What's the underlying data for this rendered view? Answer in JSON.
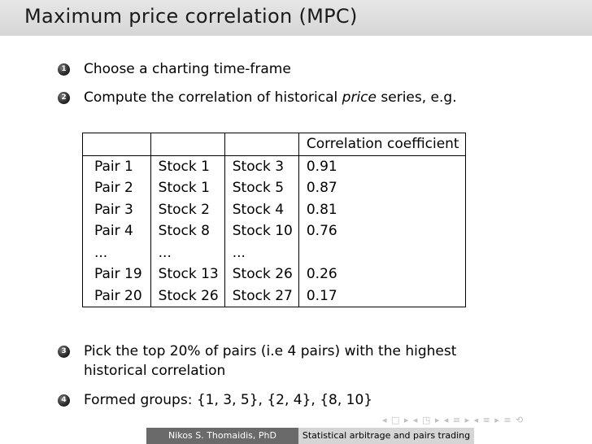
{
  "title": "Maximum price correlation (MPC)",
  "list": [
    {
      "num": "1",
      "text": "Choose a charting time-frame"
    },
    {
      "num": "2",
      "pre": "Compute the correlation of historical ",
      "em": "price",
      "post": " series, e.g."
    },
    {
      "num": "3",
      "line1": "Pick the top 20% of pairs (i.e 4 pairs) with the highest",
      "line2": "historical correlation"
    },
    {
      "num": "4",
      "text": "Formed groups: {1, 3, 5}, {2, 4}, {8, 10}"
    }
  ],
  "table": {
    "headers": [
      "",
      "",
      "",
      "Correlation coefficient"
    ],
    "rows": [
      [
        "Pair 1",
        "Stock 1",
        "Stock 3",
        "0.91"
      ],
      [
        "Pair 2",
        "Stock 1",
        "Stock 5",
        "0.87"
      ],
      [
        "Pair 3",
        "Stock 2",
        "Stock 4",
        "0.81"
      ],
      [
        "Pair 4",
        "Stock 8",
        "Stock 10",
        "0.76"
      ],
      [
        "...",
        "...",
        "...",
        ""
      ],
      [
        "Pair 19",
        "Stock 13",
        "Stock 26",
        "0.26"
      ],
      [
        "Pair 20",
        "Stock 26",
        "Stock 27",
        "0.17"
      ]
    ]
  },
  "nav": "◂ □ ▸ ◂ ◳ ▸ ◂ ≡ ▸ ◂ ≡ ▸ ≡ ⟲",
  "footer": {
    "author": "Nikos S. Thomaidis, PhD",
    "talk": "Statistical arbitrage and pairs trading"
  },
  "colors": {
    "title_bar": "#d6d6d6",
    "footer_author_bg": "#6a6a6a",
    "footer_talk_bg": "#d5d5d5"
  }
}
